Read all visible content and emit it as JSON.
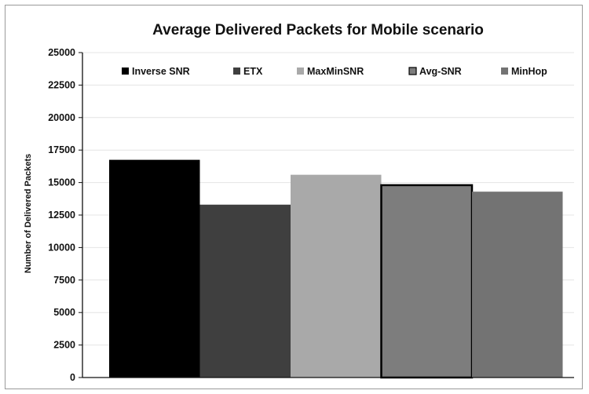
{
  "chart_data": {
    "type": "bar",
    "title": "Average Delivered Packets for Mobile scenario",
    "xlabel": "",
    "ylabel": "Number of Delivered Packets",
    "ylim": [
      0,
      25000
    ],
    "yticks": [
      "0",
      "2500",
      "5000",
      "7500",
      "10000",
      "12500",
      "15000",
      "17500",
      "20000",
      "22500",
      "25000"
    ],
    "grid": true,
    "legend_position": "top",
    "series": [
      {
        "name": "Inverse SNR",
        "value": 16750,
        "color": "#000000"
      },
      {
        "name": "ETX",
        "value": 13300,
        "color": "#3f3f3f"
      },
      {
        "name": "MaxMinSNR",
        "value": 15600,
        "color": "#a9a9a9"
      },
      {
        "name": "Avg-SNR",
        "value": 14800,
        "color": "#7d7d7d"
      },
      {
        "name": "MinHop",
        "value": 14300,
        "color": "#737373"
      }
    ]
  }
}
